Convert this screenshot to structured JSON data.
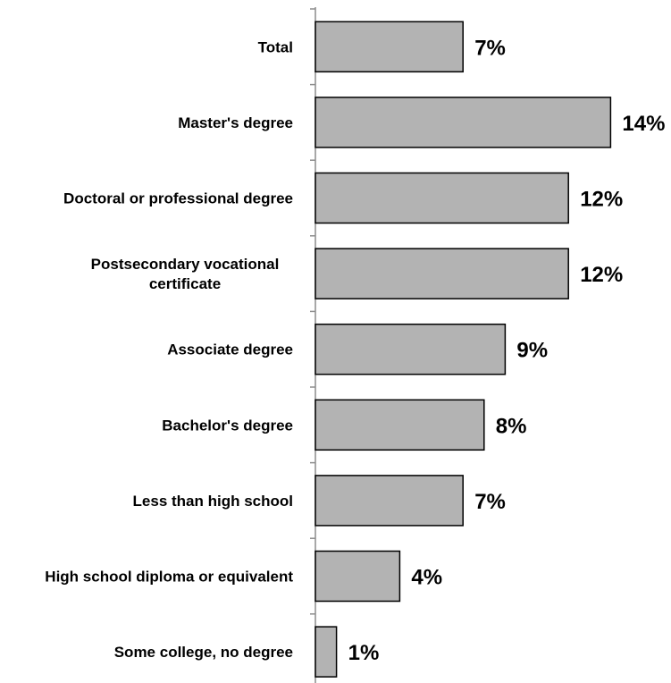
{
  "chart_data": {
    "type": "bar",
    "orientation": "horizontal",
    "categories": [
      [
        "Total"
      ],
      [
        "Master's degree"
      ],
      [
        "Doctoral or professional degree"
      ],
      [
        "Postsecondary vocational",
        "certificate"
      ],
      [
        "Associate degree"
      ],
      [
        "Bachelor's degree"
      ],
      [
        "Less than high school"
      ],
      [
        "High school diploma or equivalent"
      ],
      [
        "Some college, no degree"
      ]
    ],
    "values": [
      7,
      14,
      12,
      12,
      9,
      8,
      7,
      4,
      1
    ],
    "value_labels": [
      "7%",
      "14%",
      "12%",
      "12%",
      "9%",
      "8%",
      "7%",
      "4%",
      "1%"
    ],
    "unit": "%",
    "title": "",
    "xlabel": "",
    "ylabel": "",
    "grid": false,
    "legend": "none",
    "colors": {
      "bar_fill": "#b3b3b3",
      "bar_stroke": "#000000",
      "axis": "#8c8c8c",
      "text": "#000000"
    }
  }
}
